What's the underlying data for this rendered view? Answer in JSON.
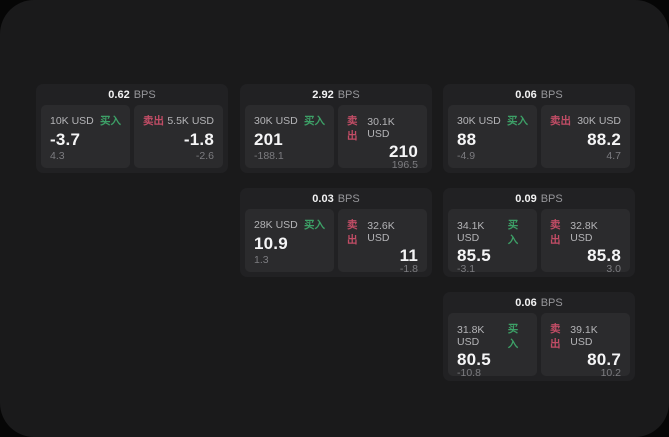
{
  "labels": {
    "bps_unit": "BPS",
    "buy": "买入",
    "sell": "卖出"
  },
  "colors": {
    "page_bg": "#1a1a1b",
    "card_bg": "#212123",
    "panel_bg": "#2b2b2d",
    "buy_green": "#3da067",
    "sell_red": "#c24d66"
  },
  "cards": [
    {
      "bps": "0.62",
      "buy": {
        "amount": "10K USD",
        "value": "-3.7",
        "sub": "4.3"
      },
      "sell": {
        "amount": "5.5K USD",
        "value": "-1.8",
        "sub": "-2.6"
      }
    },
    {
      "bps": "2.92",
      "buy": {
        "amount": "30K USD",
        "value": "201",
        "sub": "-188.1"
      },
      "sell": {
        "amount": "30.1K USD",
        "value": "210",
        "sub": "196.5"
      }
    },
    {
      "bps": "0.06",
      "buy": {
        "amount": "30K USD",
        "value": "88",
        "sub": "-4.9"
      },
      "sell": {
        "amount": "30K USD",
        "value": "88.2",
        "sub": "4.7"
      }
    },
    {
      "bps": "0.03",
      "buy": {
        "amount": "28K USD",
        "value": "10.9",
        "sub": "1.3"
      },
      "sell": {
        "amount": "32.6K USD",
        "value": "11",
        "sub": "-1.8"
      }
    },
    {
      "bps": "0.09",
      "buy": {
        "amount": "34.1K USD",
        "value": "85.5",
        "sub": "-3.1"
      },
      "sell": {
        "amount": "32.8K USD",
        "value": "85.8",
        "sub": "3.0"
      }
    },
    {
      "bps": "0.06",
      "buy": {
        "amount": "31.8K USD",
        "value": "80.5",
        "sub": "-10.8"
      },
      "sell": {
        "amount": "39.1K USD",
        "value": "80.7",
        "sub": "10.2"
      }
    }
  ]
}
